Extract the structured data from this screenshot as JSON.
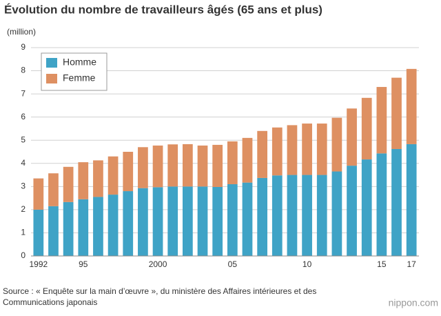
{
  "chart_data": {
    "type": "stacked_bar",
    "title": "Évolution du nombre de travailleurs âgés (65 ans et plus)",
    "y_label": "(million)",
    "categories": [
      "1992",
      null,
      null,
      "95",
      null,
      null,
      null,
      null,
      "2000",
      null,
      null,
      null,
      null,
      "05",
      null,
      null,
      null,
      null,
      "10",
      null,
      null,
      null,
      null,
      "15",
      null,
      "17"
    ],
    "series": [
      {
        "name": "Homme",
        "color": "#3fa3c6",
        "values": [
          2.0,
          2.15,
          2.33,
          2.45,
          2.55,
          2.65,
          2.8,
          2.93,
          2.97,
          3.0,
          3.0,
          3.0,
          2.98,
          3.1,
          3.17,
          3.37,
          3.48,
          3.5,
          3.5,
          3.5,
          3.65,
          3.9,
          4.17,
          4.43,
          4.62,
          4.83
        ]
      },
      {
        "name": "Femme",
        "color": "#de9062",
        "values": [
          1.35,
          1.42,
          1.52,
          1.6,
          1.58,
          1.65,
          1.7,
          1.77,
          1.8,
          1.82,
          1.83,
          1.77,
          1.82,
          1.85,
          1.93,
          2.03,
          2.07,
          2.15,
          2.22,
          2.22,
          2.32,
          2.47,
          2.66,
          2.87,
          3.08,
          3.25
        ]
      }
    ],
    "ylim": [
      0,
      9
    ],
    "yticks": [
      0,
      1,
      2,
      3,
      4,
      5,
      6,
      7,
      8,
      9
    ],
    "grid": true,
    "legend": "top-left",
    "source": "Source : « Enquête sur la main d’œuvre », du ministère des Affaires intérieures et des Communications japonais",
    "brand": "nippon.com"
  }
}
